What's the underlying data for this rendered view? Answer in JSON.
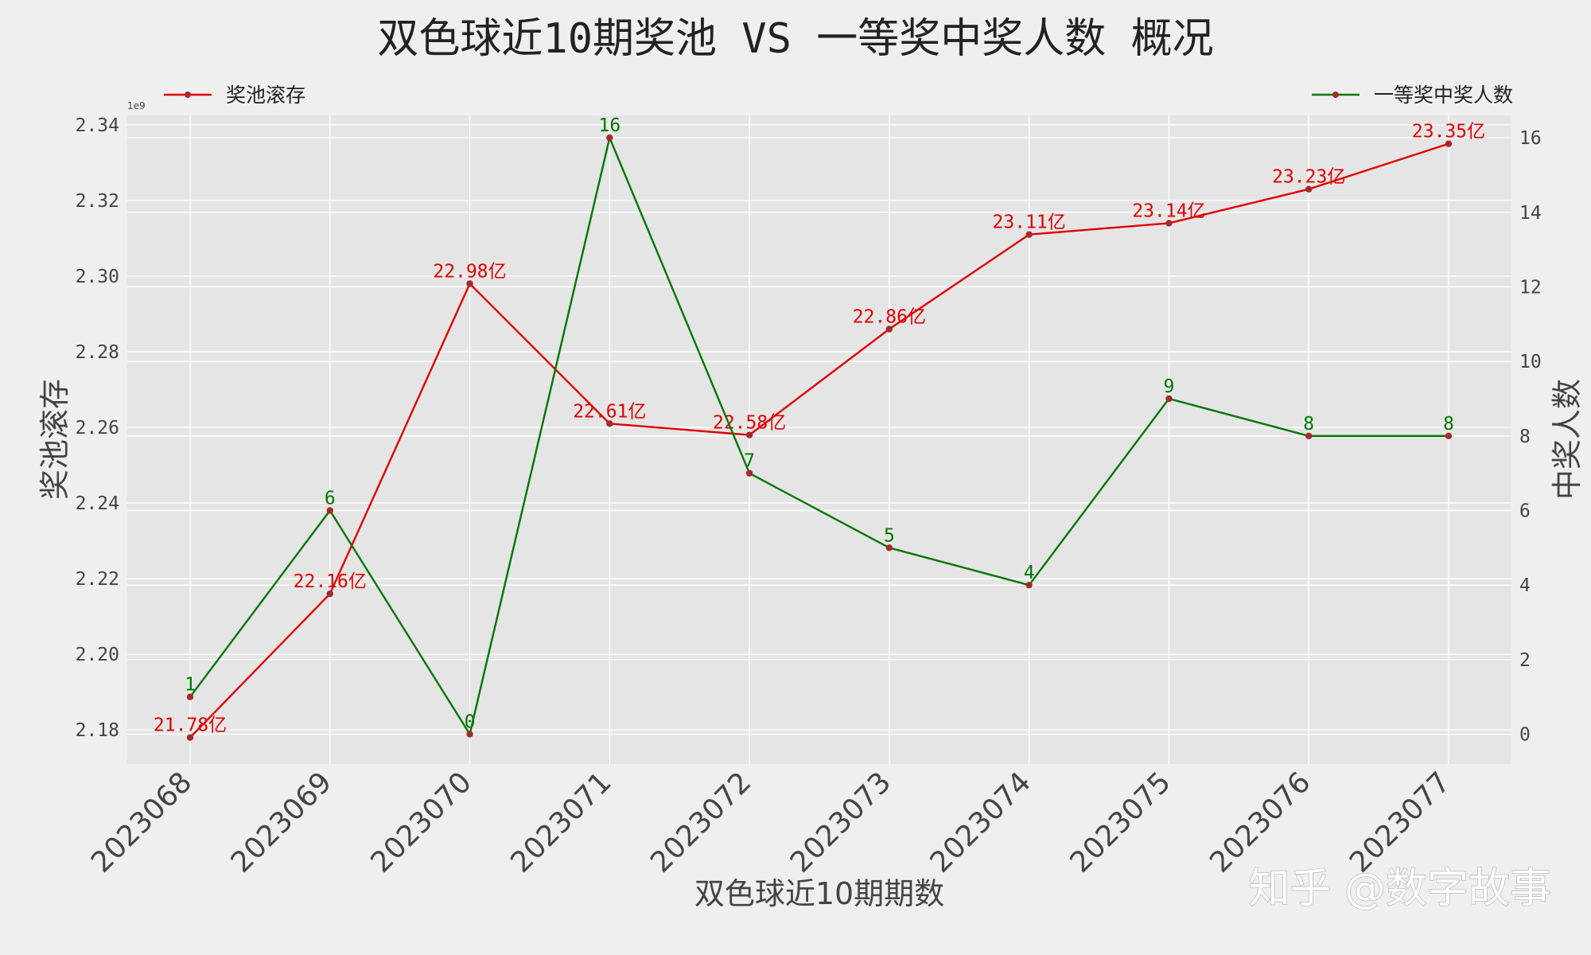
{
  "title": "双色球近10期奖池 VS 一等奖中奖人数 概况",
  "watermark": "知乎 @数字故事",
  "colors": {
    "background": "#efefef",
    "plot_background": "#e5e5e5",
    "grid": "#ffffff",
    "pool_line": "#e00000",
    "winner_line": "#007700",
    "marker": "#a52a2a"
  },
  "chart_data": {
    "type": "line",
    "title": "双色球近10期奖池 VS 一等奖中奖人数 概况",
    "xlabel": "双色球近10期期数",
    "ylabel": "奖池滚存",
    "y2label": "中奖人数",
    "y_scale_note": "1e9",
    "categories": [
      "2023068",
      "2023069",
      "2023070",
      "2023071",
      "2023072",
      "2023073",
      "2023074",
      "2023075",
      "2023076",
      "2023077"
    ],
    "ylim": [
      2.171,
      2.3425
    ],
    "yticks": [
      "2.18",
      "2.20",
      "2.22",
      "2.24",
      "2.26",
      "2.28",
      "2.30",
      "2.32",
      "2.34"
    ],
    "y2lim": [
      -0.8,
      16.6
    ],
    "y2ticks": [
      "0",
      "2",
      "4",
      "6",
      "8",
      "10",
      "12",
      "14",
      "16"
    ],
    "grid": true,
    "series": [
      {
        "name": "奖池滚存",
        "axis": "left",
        "values": [
          2.178,
          2.216,
          2.298,
          2.261,
          2.258,
          2.286,
          2.311,
          2.314,
          2.323,
          2.335
        ],
        "labels": [
          "21.78亿",
          "22.16亿",
          "22.98亿",
          "22.61亿",
          "22.58亿",
          "22.86亿",
          "23.11亿",
          "23.14亿",
          "23.23亿",
          "23.35亿"
        ],
        "legend_position": "top-left"
      },
      {
        "name": "一等奖中奖人数",
        "axis": "right",
        "values": [
          1,
          6,
          0,
          16,
          7,
          5,
          4,
          9,
          8,
          8
        ],
        "labels": [
          "1",
          "6",
          "0",
          "16",
          "7",
          "5",
          "4",
          "9",
          "8",
          "8"
        ],
        "legend_position": "top-right"
      }
    ]
  }
}
